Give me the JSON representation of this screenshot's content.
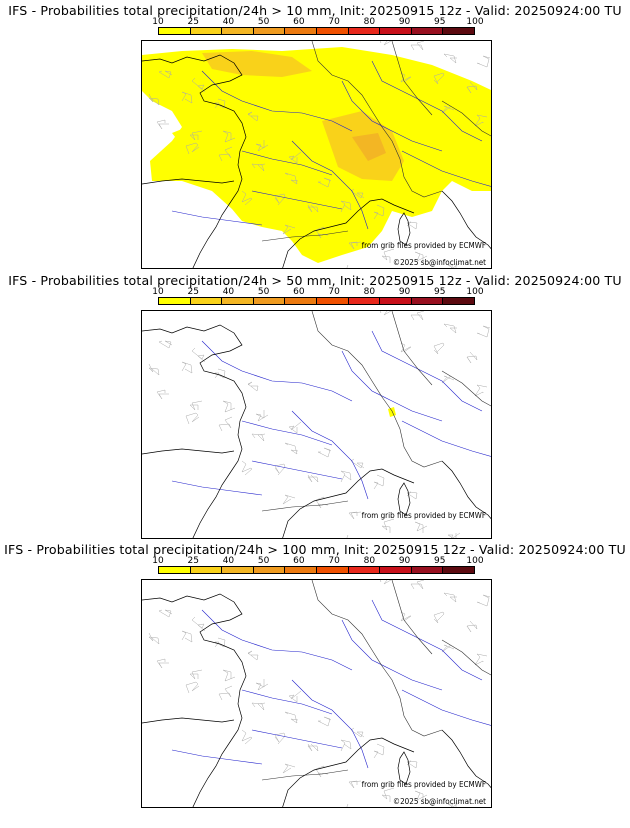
{
  "colorbar": {
    "ticks": [
      "10",
      "25",
      "40",
      "50",
      "60",
      "70",
      "80",
      "90",
      "95",
      "100"
    ],
    "colors": [
      "#ffff00",
      "#f9d21a",
      "#f3b624",
      "#ef9b20",
      "#ec7a10",
      "#f05000",
      "#e8281c",
      "#c8101a",
      "#981020",
      "#5c0a10"
    ]
  },
  "panels": [
    {
      "title": "IFS - Probabilities total precipitation/24h > 10 mm, Init: 20250915 12z - Valid: 20250924:00 TU",
      "credit_source": "from grib files provided by ECMWF",
      "credit_copyright": "©2025 sb@infoclimat.net",
      "threshold_mm": 10
    },
    {
      "title": "IFS - Probabilities total precipitation/24h > 50 mm, Init: 20250915 12z - Valid: 20250924:00 TU",
      "credit_source": "from grib files provided by ECMWF",
      "credit_copyright": "",
      "threshold_mm": 50
    },
    {
      "title": "IFS - Probabilities total precipitation/24h > 100 mm, Init: 20250915 12z - Valid: 20250924:00 TU",
      "credit_source": "from grib files provided by ECMWF",
      "credit_copyright": "©2025 sb@infoclimat.net",
      "threshold_mm": 100
    }
  ]
}
